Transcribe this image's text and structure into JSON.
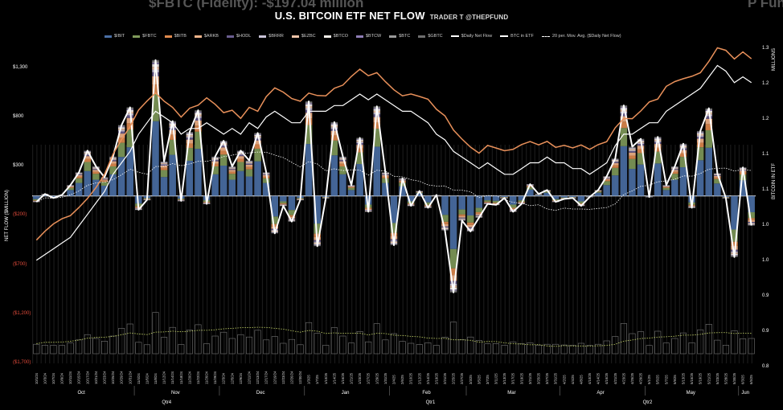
{
  "background_text": {
    "left": "$FBTC (Fidelity): -$197.04 million",
    "right": "P Fun"
  },
  "chart_data": {
    "type": "bar",
    "title": "U.S. BITCOIN ETF NET FLOW",
    "byline": "TRADER T @THEPFUND",
    "ylabel": "NET FLOW ($MILLION)",
    "y2label": "BITCOIN IN ETF",
    "y2unit": "MILLIONS",
    "ylim": [
      -1700,
      1500
    ],
    "y2lim": [
      0.8,
      1.35
    ],
    "yticks": [
      {
        "v": 1300,
        "label": "$1,300"
      },
      {
        "v": 800,
        "label": "$800"
      },
      {
        "v": 300,
        "label": "$300"
      },
      {
        "v": -200,
        "label": "($200)"
      },
      {
        "v": -700,
        "label": "($700)"
      },
      {
        "v": -1200,
        "label": "($1,200)"
      },
      {
        "v": -1700,
        "label": "($1,700)"
      }
    ],
    "y2ticks": [
      "1.3",
      "1.2",
      "1.2",
      "1.1",
      "1.1",
      "1.0",
      "1.0",
      "0.9",
      "0.9",
      "0.8"
    ],
    "legend": [
      {
        "name": "$IBIT",
        "color": "#4a6fa5"
      },
      {
        "name": "$FBTC",
        "color": "#7f9a5a"
      },
      {
        "name": "$BITB",
        "color": "#e08a4e"
      },
      {
        "name": "$ARKB",
        "color": "#f2b48a"
      },
      {
        "name": "$HODL",
        "color": "#6a5d8f"
      },
      {
        "name": "$BRRR",
        "color": "#c9c3d8"
      },
      {
        "name": "$EZBC",
        "color": "#f0c4a8"
      },
      {
        "name": "$BTCO",
        "color": "#f5f0ea"
      },
      {
        "name": "$BTCW",
        "color": "#8e7db5"
      },
      {
        "name": "$BTC",
        "color": "#9a9a9a"
      },
      {
        "name": "$GBTC",
        "color": "#6e6e6e"
      },
      {
        "name": "$Daily Net Flow",
        "line": "solid"
      },
      {
        "name": "BTC in ETF",
        "line": "solid"
      },
      {
        "name": "20 per. Mov. Avg. ($Daily Net Flow)",
        "line": "dashed"
      }
    ],
    "dates": [
      "10/1/24",
      "10/3/24",
      "10/7/24",
      "10/9/24",
      "10/11/24",
      "10/15/24",
      "10/17/24",
      "10/21/24",
      "10/23/24",
      "10/25/24",
      "10/29/24",
      "10/31/24",
      "11/4/24",
      "11/6/24",
      "11/8/24",
      "11/12/24",
      "11/14/24",
      "11/18/24",
      "11/20/24",
      "11/22/24",
      "11/26/24",
      "11/29/24",
      "12/3/24",
      "12/5/24",
      "12/9/24",
      "12/11/24",
      "12/13/24",
      "12/17/24",
      "12/19/24",
      "12/23/24",
      "12/26/24",
      "12/30/24",
      "1/3/25",
      "1/7/25",
      "1/10/25",
      "1/14/25",
      "1/16/25",
      "1/21/25",
      "1/23/25",
      "1/27/25",
      "1/29/25",
      "1/31/25",
      "2/4/25",
      "2/6/25",
      "2/10/25",
      "2/12/25",
      "2/14/25",
      "2/19/25",
      "2/21/25",
      "2/25/25",
      "2/27/25",
      "3/3/25",
      "3/5/25",
      "3/7/25",
      "3/11/25",
      "3/13/25",
      "3/17/25",
      "3/19/25",
      "3/21/25",
      "3/25/25",
      "3/27/25",
      "3/31/25",
      "4/2/25",
      "4/4/25",
      "4/8/25",
      "4/10/25",
      "4/14/25",
      "4/16/25",
      "4/21/25",
      "4/23/25",
      "4/25/25",
      "4/29/25",
      "5/1/25",
      "5/5/25",
      "5/7/25",
      "5/9/25",
      "5/13/25",
      "5/15/25",
      "5/19/25",
      "5/21/25",
      "5/23/25",
      "5/28/25",
      "5/30/25",
      "6/3/25",
      "6/5/25"
    ],
    "months": [
      "Oct",
      "Nov",
      "Dec",
      "Jan",
      "Feb",
      "Mar",
      "Apr",
      "May",
      "Jun"
    ],
    "quarters": [
      "Qtr4",
      "Qtr1",
      "Qtr2"
    ],
    "net_flow": [
      -60,
      20,
      -20,
      10,
      110,
      240,
      460,
      300,
      190,
      400,
      720,
      900,
      -140,
      -40,
      1380,
      350,
      760,
      -50,
      650,
      870,
      -80,
      400,
      560,
      300,
      460,
      360,
      640,
      240,
      -380,
      -100,
      -260,
      -40,
      960,
      -510,
      -20,
      750,
      400,
      110,
      590,
      -160,
      910,
      240,
      -500,
      180,
      -100,
      50,
      -120,
      10,
      -350,
      -980,
      -250,
      -360,
      -220,
      -80,
      -90,
      -20,
      -160,
      -80,
      120,
      20,
      60,
      -60,
      -30,
      -20,
      -100,
      -10,
      60,
      200,
      380,
      920,
      500,
      580,
      -10,
      600,
      110,
      300,
      530,
      -120,
      660,
      890,
      230,
      -20,
      -620,
      290,
      -300
    ],
    "btc_in_etf": [
      0.98,
      0.99,
      1.0,
      1.01,
      1.02,
      1.04,
      1.06,
      1.08,
      1.1,
      1.13,
      1.15,
      1.17,
      1.2,
      1.22,
      1.24,
      1.23,
      1.22,
      1.2,
      1.21,
      1.21,
      1.22,
      1.21,
      1.2,
      1.21,
      1.2,
      1.22,
      1.21,
      1.23,
      1.24,
      1.23,
      1.22,
      1.22,
      1.24,
      1.24,
      1.24,
      1.25,
      1.25,
      1.26,
      1.27,
      1.26,
      1.27,
      1.26,
      1.25,
      1.24,
      1.24,
      1.23,
      1.22,
      1.2,
      1.19,
      1.17,
      1.16,
      1.15,
      1.14,
      1.15,
      1.14,
      1.13,
      1.13,
      1.14,
      1.15,
      1.15,
      1.16,
      1.15,
      1.15,
      1.14,
      1.14,
      1.13,
      1.14,
      1.15,
      1.18,
      1.2,
      1.2,
      1.21,
      1.22,
      1.22,
      1.24,
      1.25,
      1.26,
      1.27,
      1.28,
      1.3,
      1.32,
      1.31,
      1.29,
      1.3,
      1.29
    ]
  }
}
